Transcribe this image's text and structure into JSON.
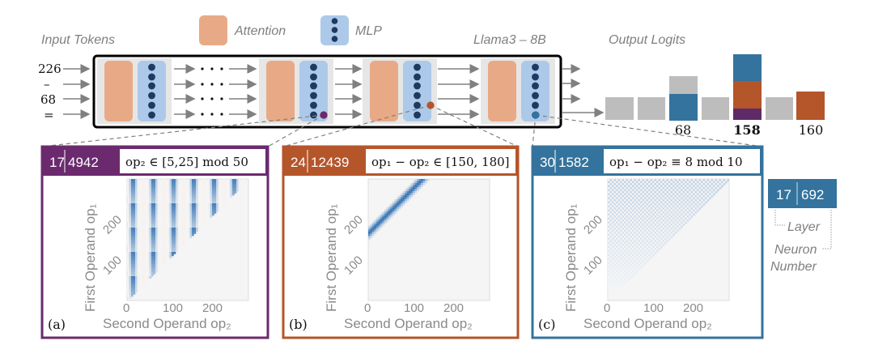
{
  "legend": {
    "attention_label": "Attention",
    "mlp_label": "MLP"
  },
  "input": {
    "title": "Input Tokens",
    "tokens": [
      "226",
      "–",
      "68",
      "="
    ]
  },
  "model": {
    "title": "Llama3 – 8B"
  },
  "output": {
    "title": "Output Logits",
    "labels": [
      "68",
      "158",
      "160"
    ]
  },
  "colors": {
    "attention": "#e8aa86",
    "mlp": "#adc9e9",
    "neuron": "#1f3a5f",
    "purple": "#6b2a6e",
    "orange": "#b5552a",
    "blue": "#34739d",
    "gray": "#bdbdbd"
  },
  "panels": [
    {
      "id": "(a)",
      "layer": "17",
      "neuron": "4942",
      "formula": "op₂ ∈ [5,25] mod 50",
      "color": "#6b2a6e"
    },
    {
      "id": "(b)",
      "layer": "24",
      "neuron": "12439",
      "formula": "op₁ − op₂ ∈ [150, 180]",
      "color": "#b5552a"
    },
    {
      "id": "(c)",
      "layer": "30",
      "neuron": "1582",
      "formula": "op₁ − op₂ ≡ 8 mod 10",
      "color": "#34739d"
    }
  ],
  "axes": {
    "xlabel": "Second Operand op₂",
    "ylabel": "First Operand op₁",
    "xticks": [
      "0",
      "100",
      "200"
    ],
    "yticks": [
      "100",
      "200"
    ]
  },
  "key": {
    "layer": "17",
    "neuron": "692",
    "layer_label": "Layer",
    "neuron_label_1": "Neuron",
    "neuron_label_2": "Number"
  }
}
